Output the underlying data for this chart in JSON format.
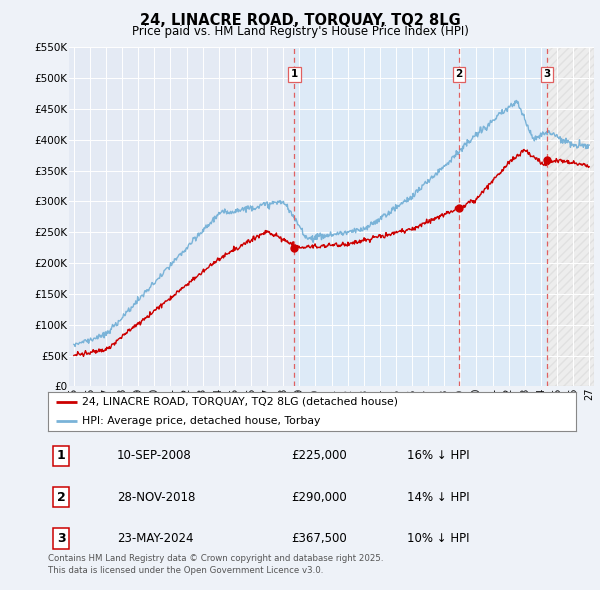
{
  "title": "24, LINACRE ROAD, TORQUAY, TQ2 8LG",
  "subtitle": "Price paid vs. HM Land Registry's House Price Index (HPI)",
  "ylim": [
    0,
    550000
  ],
  "yticks": [
    0,
    50000,
    100000,
    150000,
    200000,
    250000,
    300000,
    350000,
    400000,
    450000,
    500000,
    550000
  ],
  "ytick_labels": [
    "£0",
    "£50K",
    "£100K",
    "£150K",
    "£200K",
    "£250K",
    "£300K",
    "£350K",
    "£400K",
    "£450K",
    "£500K",
    "£550K"
  ],
  "xlim_start": 1994.7,
  "xlim_end": 2027.3,
  "xtick_years": [
    1995,
    1996,
    1997,
    1998,
    1999,
    2000,
    2001,
    2002,
    2003,
    2004,
    2005,
    2006,
    2007,
    2008,
    2009,
    2010,
    2011,
    2012,
    2013,
    2014,
    2015,
    2016,
    2017,
    2018,
    2019,
    2020,
    2021,
    2022,
    2023,
    2024,
    2025,
    2026,
    2027
  ],
  "xtick_labels": [
    "95",
    "96",
    "97",
    "98",
    "99",
    "00",
    "01",
    "02",
    "03",
    "04",
    "05",
    "06",
    "07",
    "08",
    "09",
    "10",
    "11",
    "12",
    "13",
    "14",
    "15",
    "16",
    "17",
    "18",
    "19",
    "20",
    "21",
    "22",
    "23",
    "24",
    "25",
    "26",
    "27"
  ],
  "hpi_color": "#7ab3d8",
  "price_color": "#cc0000",
  "vline_color": "#e06060",
  "shade_color": "#ddeaf7",
  "hatch_color": "#cccccc",
  "sale_points": [
    {
      "year": 2008.69,
      "price": 225000,
      "label": "1"
    },
    {
      "year": 2018.92,
      "price": 290000,
      "label": "2"
    },
    {
      "year": 2024.39,
      "price": 367500,
      "label": "3"
    }
  ],
  "legend_label_red": "24, LINACRE ROAD, TORQUAY, TQ2 8LG (detached house)",
  "legend_label_blue": "HPI: Average price, detached house, Torbay",
  "footer": "Contains HM Land Registry data © Crown copyright and database right 2025.\nThis data is licensed under the Open Government Licence v3.0.",
  "table_rows": [
    [
      "1",
      "10-SEP-2008",
      "£225,000",
      "16% ↓ HPI"
    ],
    [
      "2",
      "28-NOV-2018",
      "£290,000",
      "14% ↓ HPI"
    ],
    [
      "3",
      "23-MAY-2024",
      "£367,500",
      "10% ↓ HPI"
    ]
  ],
  "background_color": "#eef2f8",
  "plot_bg_color": "#e4eaf4"
}
